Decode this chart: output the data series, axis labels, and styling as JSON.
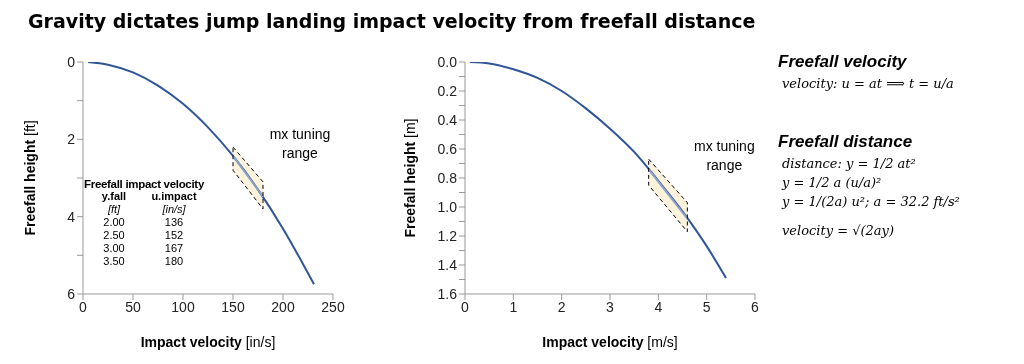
{
  "chart_data": [
    {
      "type": "line",
      "title": "Gravity dictates jump landing impact velocity from freefall distance",
      "xlabel": "Impact velocity [in/s]",
      "ylabel": "Freefall height [ft]",
      "marker": "none",
      "x": [
        5,
        25,
        50,
        75,
        100,
        125,
        150,
        175,
        200,
        231
      ],
      "series": [
        {
          "color": "#2f5597",
          "values": [
            0.0,
            0.07,
            0.27,
            0.61,
            1.08,
            1.69,
            2.43,
            3.3,
            4.31,
            5.75
          ]
        },
        {
          "name": "mx tuning range",
          "color": "#8ea4c8",
          "x": [
            150,
            180
          ],
          "values": [
            2.43,
            3.48
          ],
          "lower": [
            2.2,
            3.1
          ],
          "upper": [
            2.8,
            3.8
          ]
        }
      ],
      "xlim": [
        0,
        250
      ],
      "xticks": [
        0,
        50,
        100,
        150,
        200,
        250
      ],
      "ylim": [
        6,
        0
      ],
      "yticks": [
        0,
        {
          "value": 1,
          "label": null
        },
        2,
        {
          "value": 3,
          "label": null
        },
        4,
        {
          "value": 5,
          "label": null
        },
        6
      ],
      "annotations": [
        "Freefall impact velocity",
        "y.fall",
        "u.impact",
        "[ft]",
        "[in/s]",
        "2.00",
        "136",
        "2.50",
        "152",
        "3.00",
        "167",
        "3.50",
        "180"
      ]
    },
    {
      "type": "line",
      "xlabel": "Impact velocity [m/s]",
      "ylabel": "Freefall height [m]",
      "marker": "none",
      "x": [
        0.1,
        0.5,
        1,
        1.5,
        2,
        2.5,
        3,
        3.5,
        4,
        4.5,
        5,
        5.4
      ],
      "series": [
        {
          "color": "#2f5597",
          "values": [
            0.0,
            0.01,
            0.05,
            0.11,
            0.2,
            0.32,
            0.46,
            0.62,
            0.82,
            1.03,
            1.27,
            1.49
          ]
        },
        {
          "name": "mx tuning range",
          "color": "#8ea4c8",
          "x": [
            3.8,
            4.6
          ],
          "values": [
            0.74,
            1.08
          ],
          "lower": [
            0.67,
            0.97
          ],
          "upper": [
            0.85,
            1.17
          ]
        }
      ],
      "xlim": [
        0,
        6
      ],
      "xticks": [
        0,
        1,
        2,
        3,
        4,
        5,
        6
      ],
      "ylim": [
        1.6,
        0
      ],
      "yticks": [
        {
          "value": 0,
          "label": "0.0"
        },
        {
          "value": 0.1,
          "label": null
        },
        {
          "value": 0.2,
          "label": "0.2"
        },
        {
          "value": 0.3,
          "label": null
        },
        {
          "value": 0.4,
          "label": "0.4"
        },
        {
          "value": 0.5,
          "label": null
        },
        {
          "value": 0.6,
          "label": "0.6"
        },
        {
          "value": 0.7,
          "label": null
        },
        {
          "value": 0.8,
          "label": "0.8"
        },
        {
          "value": 0.9,
          "label": null
        },
        {
          "value": 1,
          "label": "1.0"
        },
        {
          "value": 1.1,
          "label": null
        },
        {
          "value": 1.2,
          "label": "1.2"
        },
        {
          "value": 1.3,
          "label": null
        },
        {
          "value": 1.4,
          "label": "1.4"
        },
        {
          "value": 1.5,
          "label": null
        },
        {
          "value": 1.6,
          "label": "1.6"
        }
      ]
    },
    {
      "type": "other",
      "title": "Freefall velocity",
      "annotations": [
        "velocity: u = at  ⟹  t = u/a"
      ]
    },
    {
      "type": "other",
      "title": "Freefall distance",
      "annotations": [
        "distance: y = 1/2 at²",
        "y = 1/2 a (u/a)²",
        "y = 1/(2a) u²;  a = 32.2 ft/s²",
        "velocity = √(2ay)"
      ]
    }
  ]
}
